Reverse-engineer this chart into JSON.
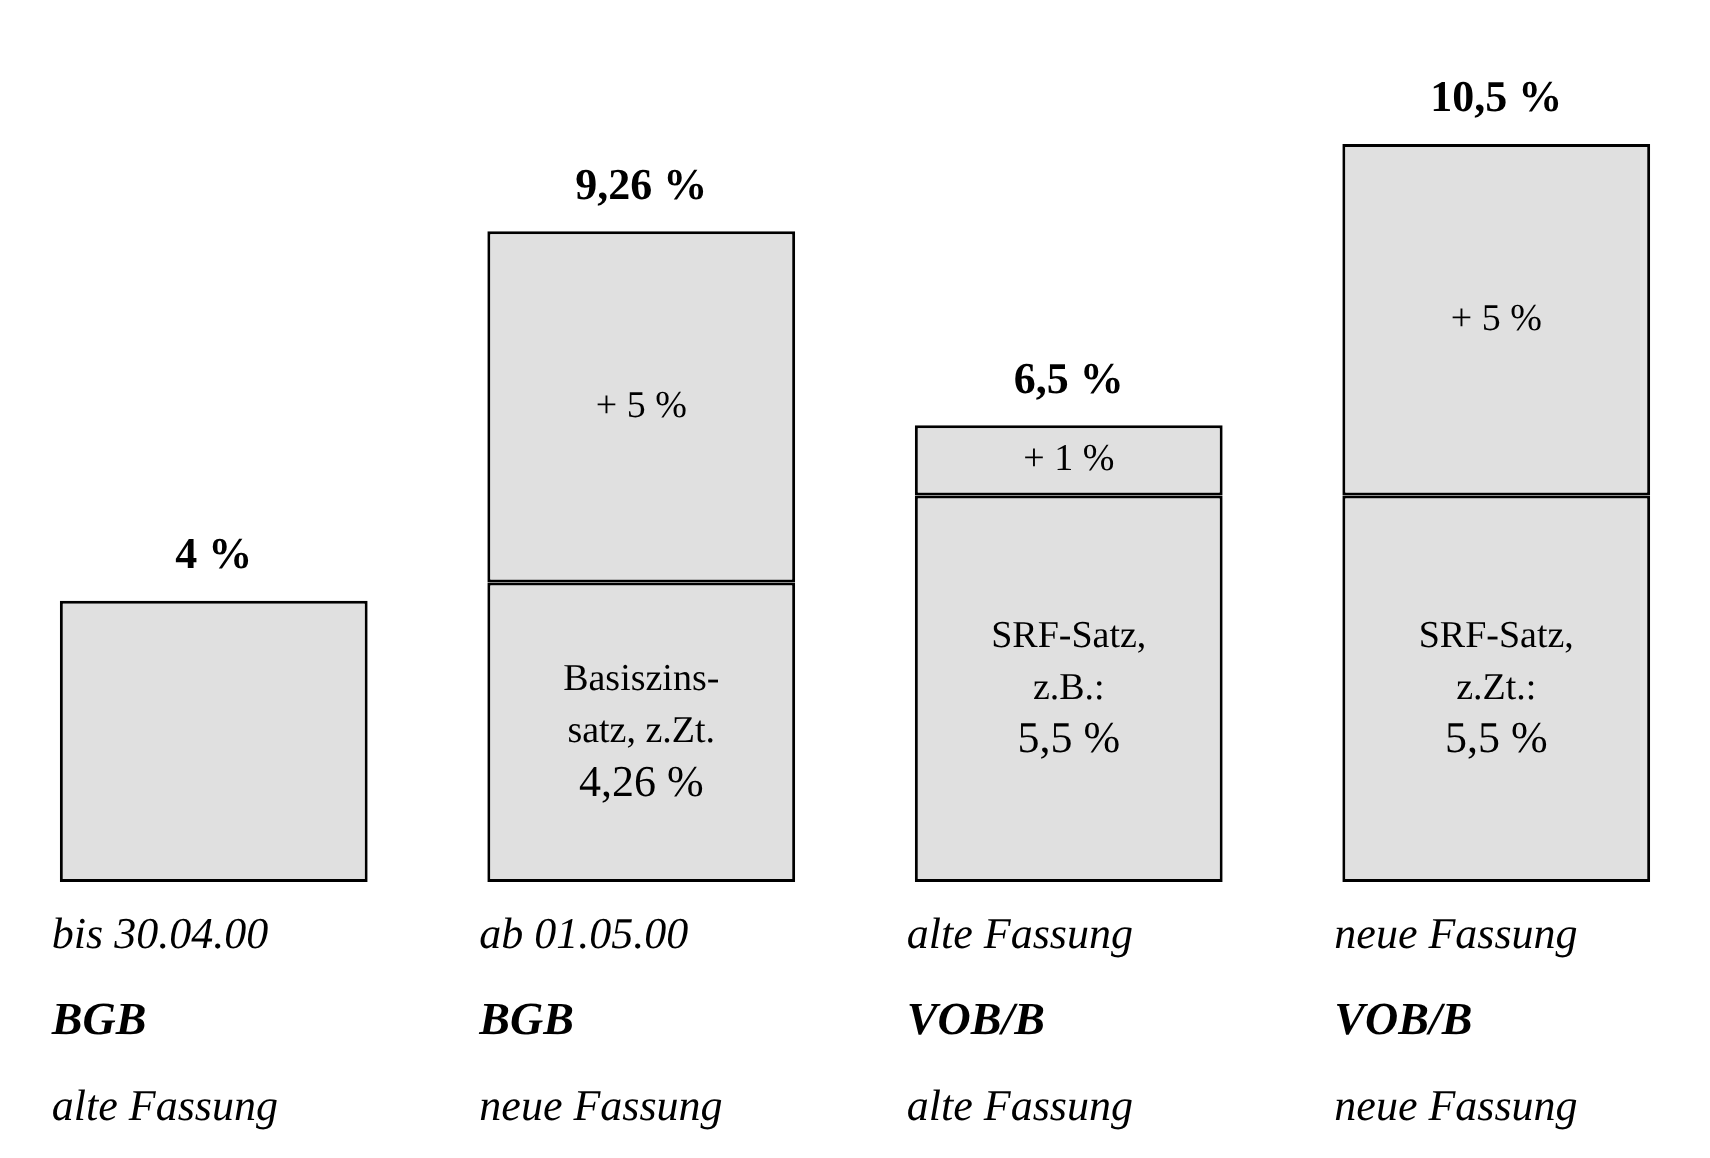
{
  "chart_data": {
    "type": "bar",
    "stacked": true,
    "legend": false,
    "categories": [
      "bis 30.04.00\nBGB\nalte Fassung",
      "ab 01.05.00\nBGB\nneue Fassung",
      "alte Fassung\nVOB/B\nalte Fassung",
      "neue Fassung\nVOB/B\nneue Fassung"
    ],
    "series": [
      {
        "color": "#e0e0e0",
        "values": [
          4,
          4.26,
          5.5,
          5.5
        ],
        "value_labels": [
          null,
          "Basiszins-\nsatz, z.Zt.\n4,26 %",
          "SRF-Satz,\nz.B.:\n5,5 %",
          "SRF-Satz,\nz.Zt.:\n5,5 %"
        ]
      },
      {
        "color": "#e0e0e0",
        "values": [
          null,
          5,
          1,
          5
        ],
        "value_labels": [
          null,
          "+ 5 %",
          "+ 1 %",
          "+ 5 %"
        ]
      }
    ],
    "totals": [
      "4 %",
      "9,26 %",
      "6,5 %",
      "10,5 %"
    ]
  }
}
